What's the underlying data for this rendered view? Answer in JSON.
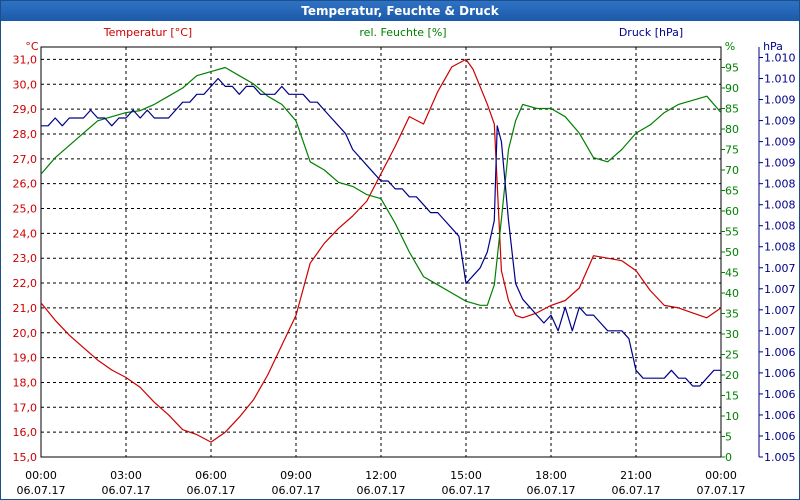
{
  "window_title": "Temperatur, Feuchte & Druck",
  "colors": {
    "temperature": "#cc0000",
    "humidity": "#008000",
    "pressure": "#00008b",
    "titlebar": "#1f5fae"
  },
  "chart_data": {
    "type": "line",
    "title": "Temperatur, Feuchte & Druck",
    "x_ticks": [
      {
        "time": "00:00",
        "date": "06.07.17"
      },
      {
        "time": "03:00",
        "date": "06.07.17"
      },
      {
        "time": "06:00",
        "date": "06.07.17"
      },
      {
        "time": "09:00",
        "date": "06.07.17"
      },
      {
        "time": "12:00",
        "date": "06.07.17"
      },
      {
        "time": "15:00",
        "date": "06.07.17"
      },
      {
        "time": "18:00",
        "date": "06.07.17"
      },
      {
        "time": "21:00",
        "date": "06.07.17"
      },
      {
        "time": "00:00",
        "date": "07.07.17"
      }
    ],
    "xlim_hours": [
      0,
      24
    ],
    "axes": {
      "temperature": {
        "label": "Temperatur [°C]",
        "unit": "°C",
        "ylim": [
          15.0,
          31.5
        ],
        "ticks": [
          "15,0",
          "16,0",
          "17,0",
          "18,0",
          "19,0",
          "20,0",
          "21,0",
          "22,0",
          "23,0",
          "24,0",
          "25,0",
          "26,0",
          "27,0",
          "28,0",
          "29,0",
          "30,0",
          "31,0"
        ]
      },
      "humidity": {
        "label": "rel. Feuchte [%]",
        "unit": "%",
        "ylim": [
          0,
          100
        ],
        "ticks": [
          "0",
          "5",
          "10",
          "15",
          "20",
          "25",
          "30",
          "35",
          "40",
          "45",
          "50",
          "55",
          "60",
          "65",
          "70",
          "75",
          "80",
          "85",
          "90",
          "95"
        ]
      },
      "pressure": {
        "label": "Druck [hPa]",
        "unit": "hPa",
        "ylim": [
          1.005,
          1.0102
        ],
        "ticks": [
          "1.005",
          "1.006",
          "1.006",
          "1.006",
          "1.006",
          "1.006",
          "1.007",
          "1.007",
          "1.007",
          "1.007",
          "1.008",
          "1.008",
          "1.008",
          "1.008",
          "1.009",
          "1.009",
          "1.009",
          "1.009",
          "1.010",
          "1.010"
        ]
      }
    },
    "series": [
      {
        "name": "Temperatur",
        "axis": "temperature",
        "x": [
          0,
          0.5,
          1,
          1.5,
          2,
          2.5,
          3,
          3.5,
          4,
          4.5,
          5,
          5.5,
          6,
          6.5,
          7,
          7.5,
          8,
          8.5,
          9,
          9.5,
          10,
          10.5,
          11,
          11.5,
          12,
          12.5,
          13,
          13.5,
          14,
          14.5,
          15,
          15.25,
          15.5,
          15.75,
          16,
          16.25,
          16.5,
          16.75,
          17,
          17.5,
          18,
          18.5,
          19,
          19.5,
          20,
          20.5,
          21,
          21.5,
          22,
          22.5,
          23,
          23.5,
          24
        ],
        "values": [
          21.2,
          20.5,
          19.9,
          19.4,
          18.9,
          18.5,
          18.2,
          17.8,
          17.2,
          16.7,
          16.1,
          15.9,
          15.6,
          16.0,
          16.6,
          17.3,
          18.3,
          19.5,
          20.7,
          22.8,
          23.6,
          24.2,
          24.7,
          25.3,
          26.4,
          27.5,
          28.7,
          28.4,
          29.7,
          30.7,
          31.0,
          30.6,
          29.9,
          29.2,
          28.4,
          22.5,
          21.3,
          20.7,
          20.6,
          20.8,
          21.1,
          21.3,
          21.8,
          23.1,
          23.0,
          22.9,
          22.5,
          21.7,
          21.1,
          21.0,
          20.8,
          20.6,
          21.0
        ]
      },
      {
        "name": "rel. Feuchte",
        "axis": "humidity",
        "x": [
          0,
          0.5,
          1,
          1.5,
          2,
          2.5,
          3,
          3.5,
          4,
          4.5,
          5,
          5.5,
          6,
          6.5,
          7,
          7.5,
          8,
          8.5,
          9,
          9.5,
          10,
          10.5,
          11,
          11.5,
          12,
          12.5,
          13,
          13.5,
          14,
          14.5,
          15,
          15.5,
          15.75,
          16,
          16.25,
          16.5,
          16.75,
          17,
          17.5,
          18,
          18.5,
          19,
          19.5,
          20,
          20.5,
          21,
          21.5,
          22,
          22.5,
          23,
          23.5,
          24
        ],
        "values": [
          69,
          73,
          76,
          79,
          82,
          83,
          84,
          84.5,
          86,
          88,
          90,
          93,
          94,
          95,
          93,
          91,
          88,
          86,
          82,
          72,
          70,
          67,
          66,
          64,
          63,
          57,
          50,
          44,
          42,
          40,
          38,
          37,
          37,
          42,
          58,
          75,
          82,
          86,
          85,
          85,
          83,
          79,
          73,
          72,
          75,
          79,
          81,
          84,
          86,
          87,
          88,
          84
        ]
      },
      {
        "name": "Druck",
        "axis": "pressure",
        "x": [
          0,
          0.25,
          0.5,
          0.75,
          1,
          1.25,
          1.5,
          1.75,
          2,
          2.25,
          2.5,
          2.75,
          3,
          3.25,
          3.5,
          3.75,
          4,
          4.25,
          4.5,
          4.75,
          5,
          5.25,
          5.5,
          5.75,
          6,
          6.25,
          6.5,
          6.75,
          7,
          7.25,
          7.5,
          7.75,
          8,
          8.25,
          8.5,
          8.75,
          9,
          9.25,
          9.5,
          9.75,
          10,
          10.25,
          10.5,
          10.75,
          11,
          11.25,
          11.5,
          11.75,
          12,
          12.25,
          12.5,
          12.75,
          13,
          13.25,
          13.5,
          13.75,
          14,
          14.25,
          14.5,
          14.75,
          15,
          15.25,
          15.5,
          15.75,
          16,
          16.1,
          16.25,
          16.5,
          16.75,
          17,
          17.25,
          17.5,
          17.75,
          18,
          18.25,
          18.5,
          18.75,
          19,
          19.25,
          19.5,
          19.75,
          20,
          20.25,
          20.5,
          20.75,
          21,
          21.25,
          21.5,
          21.75,
          22,
          22.25,
          22.5,
          22.75,
          23,
          23.25,
          23.5,
          23.75,
          24
        ],
        "values": [
          1.0092,
          1.0092,
          1.0093,
          1.0092,
          1.0093,
          1.0093,
          1.0093,
          1.0094,
          1.0093,
          1.0093,
          1.0092,
          1.0093,
          1.0093,
          1.0094,
          1.0093,
          1.0094,
          1.0093,
          1.0093,
          1.0093,
          1.0094,
          1.0095,
          1.0095,
          1.0096,
          1.0096,
          1.0097,
          1.0098,
          1.0097,
          1.0097,
          1.0096,
          1.0097,
          1.0097,
          1.0096,
          1.0096,
          1.0096,
          1.0097,
          1.0096,
          1.0096,
          1.0096,
          1.0095,
          1.0095,
          1.0094,
          1.0093,
          1.0092,
          1.0091,
          1.0089,
          1.0088,
          1.0087,
          1.0086,
          1.0085,
          1.0085,
          1.0084,
          1.0084,
          1.0083,
          1.0083,
          1.0082,
          1.0081,
          1.0081,
          1.008,
          1.0079,
          1.0078,
          1.0072,
          1.0073,
          1.0074,
          1.0076,
          1.008,
          1.0092,
          1.009,
          1.008,
          1.0072,
          1.007,
          1.0069,
          1.0068,
          1.0067,
          1.0068,
          1.0066,
          1.0069,
          1.0066,
          1.0069,
          1.0068,
          1.0068,
          1.0067,
          1.0066,
          1.0066,
          1.0066,
          1.0065,
          1.0061,
          1.006,
          1.006,
          1.006,
          1.006,
          1.0061,
          1.006,
          1.006,
          1.0059,
          1.0059,
          1.006,
          1.0061,
          1.0061
        ]
      }
    ]
  }
}
